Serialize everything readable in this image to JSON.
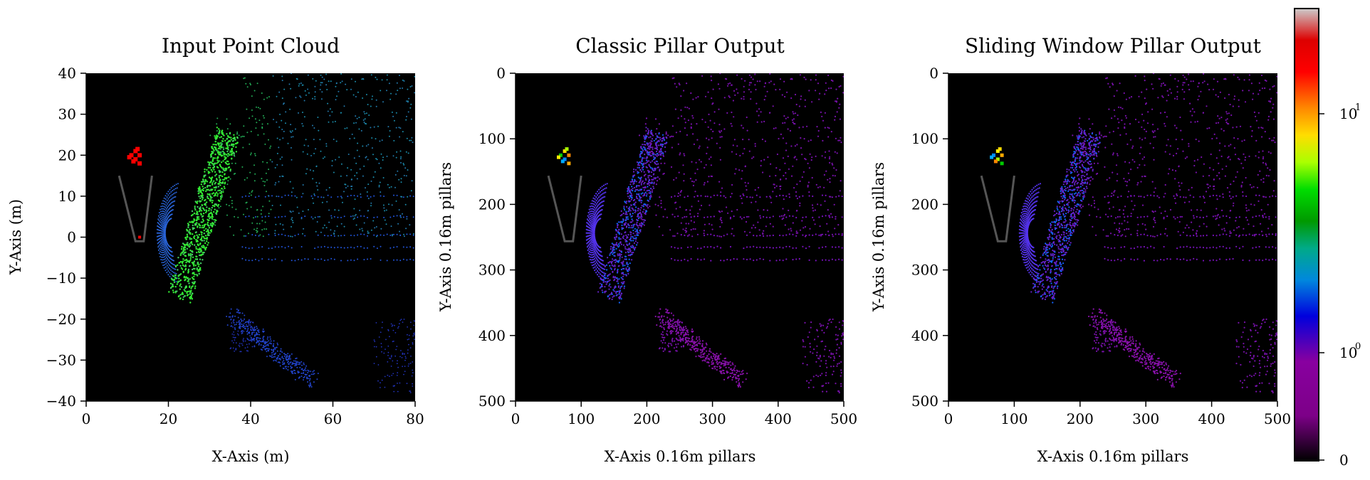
{
  "chart_data": [
    {
      "type": "scatter",
      "title": "Input Point Cloud",
      "xlabel": "X-Axis (m)",
      "ylabel": "Y-Axis (m)",
      "xlim": [
        0,
        80
      ],
      "ylim": [
        -40,
        40
      ],
      "x_ticks": [
        "0",
        "20",
        "40",
        "60",
        "80"
      ],
      "y_ticks": [
        "40",
        "30",
        "20",
        "10",
        "0",
        "−10",
        "−20",
        "−30",
        "−40"
      ],
      "background": "#000000",
      "points_description": "LiDAR point cloud colored by density",
      "dominant_colors": [
        "#22dd22",
        "#2299dd",
        "#2244dd",
        "#ff0000"
      ]
    },
    {
      "type": "heatmap",
      "title": "Classic Pillar Output",
      "xlabel": "X-Axis 0.16m pillars",
      "ylabel": "Y-Axis 0.16m pillars",
      "xlim": [
        0,
        500
      ],
      "ylim": [
        500,
        0
      ],
      "x_ticks": [
        "0",
        "100",
        "200",
        "300",
        "400",
        "500"
      ],
      "y_ticks": [
        "0",
        "100",
        "200",
        "300",
        "400",
        "500"
      ],
      "background": "#000000"
    },
    {
      "type": "heatmap",
      "title": "Sliding Window Pillar Output",
      "xlabel": "X-Axis 0.16m pillars",
      "ylabel": "Y-Axis 0.16m pillars",
      "xlim": [
        0,
        500
      ],
      "ylim": [
        500,
        0
      ],
      "x_ticks": [
        "0",
        "100",
        "200",
        "300",
        "400",
        "500"
      ],
      "y_ticks": [
        "0",
        "100",
        "200",
        "300",
        "400",
        "500"
      ],
      "background": "#000000"
    }
  ],
  "colorbar": {
    "scale": "log",
    "tick_labels": [
      {
        "base": "10",
        "exp": "1",
        "value": 10
      },
      {
        "base": "10",
        "exp": "0",
        "value": 1
      },
      {
        "base": "0",
        "exp": "",
        "value": 0
      }
    ],
    "colormap": "nipy_spectral"
  }
}
